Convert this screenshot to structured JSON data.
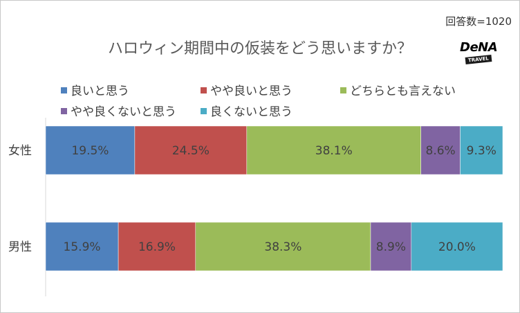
{
  "respondents": "回答数=1020",
  "logo": {
    "text": "DeNA",
    "subtext": "TRAVEL"
  },
  "chart_data": {
    "type": "bar",
    "orientation": "horizontal",
    "stacked": true,
    "title": "ハロウィン期間中の仮装をどう思いますか？",
    "categories": [
      "女性",
      "男性"
    ],
    "xlim": [
      0,
      100
    ],
    "grid": false,
    "legend_position": "top",
    "series": [
      {
        "name": "良いと思う",
        "color": "#4f81bd",
        "values": [
          19.5,
          15.9
        ],
        "labels": [
          "19.5%",
          "15.9%"
        ]
      },
      {
        "name": "やや良いと思う",
        "color": "#c0504d",
        "values": [
          24.5,
          16.9
        ],
        "labels": [
          "24.5%",
          "16.9%"
        ]
      },
      {
        "name": "どちらとも言えない",
        "color": "#9bbb59",
        "values": [
          38.1,
          38.3
        ],
        "labels": [
          "38.1%",
          "38.3%"
        ]
      },
      {
        "name": "やや良くないと思う",
        "color": "#8064a2",
        "values": [
          8.6,
          8.9
        ],
        "labels": [
          "8.6%",
          "8.9%"
        ]
      },
      {
        "name": "良くないと思う",
        "color": "#4bacc6",
        "values": [
          9.3,
          20.0
        ],
        "labels": [
          "9.3%",
          "20.0%"
        ]
      }
    ]
  }
}
